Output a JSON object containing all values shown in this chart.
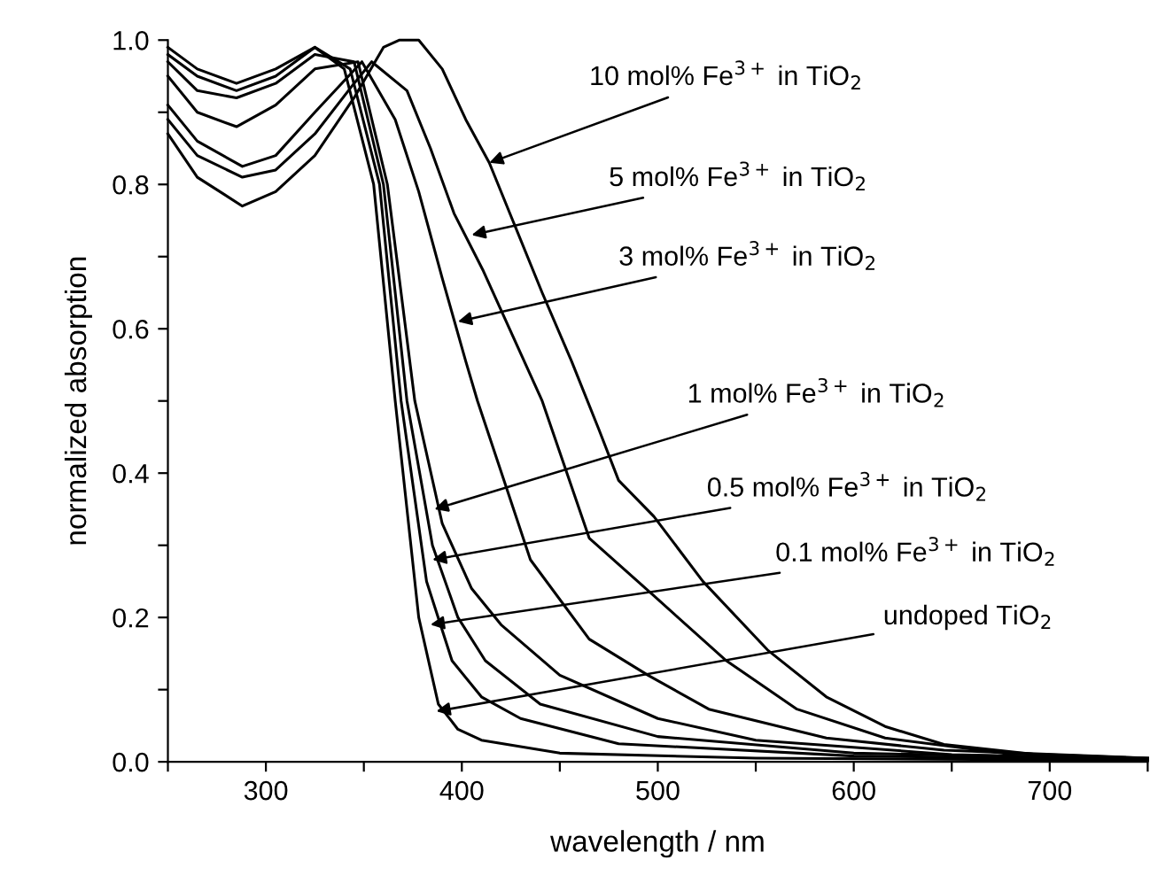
{
  "chart_data": {
    "type": "line",
    "xlabel": "wavelength / nm",
    "ylabel": "normalized absorption",
    "xlim": [
      250,
      750
    ],
    "ylim": [
      0,
      1.0
    ],
    "xticks": [
      {
        "value": 250,
        "label": null
      },
      300,
      {
        "value": 350,
        "label": null
      },
      400,
      {
        "value": 450,
        "label": null
      },
      500,
      {
        "value": 550,
        "label": null
      },
      600,
      {
        "value": 650,
        "label": null
      },
      700,
      {
        "value": 750,
        "label": null
      }
    ],
    "yticks": [
      {
        "value": 0,
        "label": "0.0"
      },
      {
        "value": 0.1,
        "label": null
      },
      0.2,
      {
        "value": 0.3,
        "label": null
      },
      0.4,
      {
        "value": 0.5,
        "label": null
      },
      0.6,
      {
        "value": 0.7,
        "label": null
      },
      0.8,
      {
        "value": 0.9,
        "label": null
      },
      {
        "value": 1.0,
        "label": "1.0"
      }
    ],
    "grid": false,
    "legend": false,
    "marker": "none",
    "line_style": "solid",
    "series": [
      {
        "color": "#000000",
        "x": [
          250,
          265,
          285,
          305,
          325,
          340,
          355,
          366,
          378,
          388,
          398,
          410,
          450,
          550,
          750
        ],
        "values": [
          0.99,
          0.96,
          0.94,
          0.96,
          0.99,
          0.96,
          0.8,
          0.5,
          0.2,
          0.08,
          0.045,
          0.03,
          0.012,
          0.005,
          0.002
        ]
      },
      {
        "color": "#000000",
        "x": [
          250,
          265,
          285,
          305,
          325,
          343,
          358,
          369,
          382,
          395,
          410,
          430,
          480,
          600,
          750
        ],
        "values": [
          0.98,
          0.95,
          0.93,
          0.95,
          0.99,
          0.96,
          0.8,
          0.5,
          0.25,
          0.14,
          0.09,
          0.06,
          0.025,
          0.008,
          0.003
        ]
      },
      {
        "color": "#000000",
        "x": [
          250,
          265,
          285,
          305,
          325,
          345,
          360,
          372,
          385,
          398,
          412,
          440,
          500,
          600,
          750
        ],
        "values": [
          0.97,
          0.93,
          0.92,
          0.94,
          0.98,
          0.97,
          0.8,
          0.5,
          0.3,
          0.2,
          0.14,
          0.08,
          0.035,
          0.012,
          0.004
        ]
      },
      {
        "color": "#000000",
        "x": [
          250,
          265,
          285,
          305,
          325,
          347,
          362,
          376,
          390,
          405,
          420,
          450,
          500,
          550,
          650,
          750
        ],
        "values": [
          0.95,
          0.9,
          0.88,
          0.91,
          0.96,
          0.97,
          0.8,
          0.5,
          0.33,
          0.24,
          0.19,
          0.12,
          0.06,
          0.03,
          0.01,
          0.004
        ]
      },
      {
        "color": "#000000",
        "x": [
          250,
          265,
          288,
          305,
          325,
          349,
          366,
          378,
          390,
          402,
          408,
          435,
          465,
          495,
          526,
          586,
          646,
          750
        ],
        "values": [
          0.91,
          0.86,
          0.825,
          0.84,
          0.9,
          0.97,
          0.89,
          0.79,
          0.67,
          0.555,
          0.5,
          0.28,
          0.17,
          0.12,
          0.073,
          0.033,
          0.016,
          0.005
        ]
      },
      {
        "color": "#000000",
        "x": [
          250,
          265,
          288,
          305,
          325,
          345,
          354,
          372,
          384,
          396,
          411,
          426,
          441,
          465,
          498,
          535,
          571,
          616,
          676,
          750
        ],
        "values": [
          0.89,
          0.84,
          0.81,
          0.82,
          0.87,
          0.94,
          0.97,
          0.93,
          0.85,
          0.76,
          0.68,
          0.59,
          0.5,
          0.31,
          0.23,
          0.14,
          0.073,
          0.033,
          0.012,
          0.005
        ]
      },
      {
        "color": "#000000",
        "x": [
          250,
          265,
          288,
          305,
          325,
          345,
          360,
          368,
          378,
          390,
          402,
          414,
          426,
          441,
          456,
          470,
          480,
          498,
          523,
          556,
          586,
          616,
          646,
          700,
          750
        ],
        "values": [
          0.87,
          0.81,
          0.77,
          0.79,
          0.84,
          0.92,
          0.99,
          1.0,
          1.0,
          0.96,
          0.89,
          0.83,
          0.75,
          0.65,
          0.555,
          0.46,
          0.39,
          0.34,
          0.25,
          0.155,
          0.09,
          0.049,
          0.024,
          0.008,
          0.004
        ]
      }
    ],
    "annotations": [
      {
        "text": "10 mol% Fe$^{3+}$ in TiO$_{2}$",
        "x": 414,
        "y": 0.83
      },
      {
        "text": "5 mol% Fe$^{3+}$ in TiO$_{2}$",
        "x": 405,
        "y": 0.73
      },
      {
        "text": "3 mol% Fe$^{3+}$ in TiO$_{2}$",
        "x": 398,
        "y": 0.61
      },
      {
        "text": "1 mol% Fe$^{3+}$ in TiO$_{2}$",
        "x": 386,
        "y": 0.35
      },
      {
        "text": "0.5 mol% Fe$^{3+}$ in TiO$_{2}$",
        "x": 385,
        "y": 0.28
      },
      {
        "text": "0.1 mol% Fe$^{3+}$ in TiO$_{2}$",
        "x": 384,
        "y": 0.19
      },
      {
        "text": "undoped TiO$_{2}$",
        "x": 387,
        "y": 0.07
      }
    ]
  }
}
